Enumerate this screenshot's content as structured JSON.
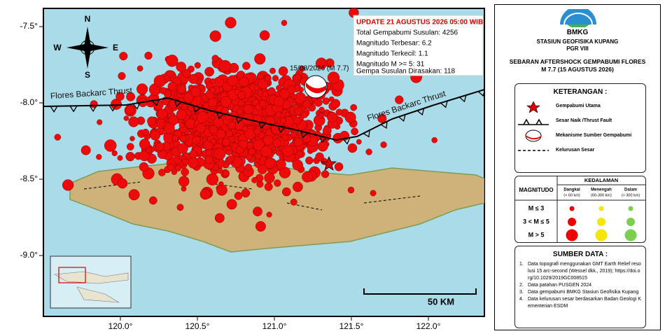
{
  "map": {
    "lat_ticks": [
      {
        "value": -7.5,
        "label": "-7.5°"
      },
      {
        "value": -8.0,
        "label": "-8.0°"
      },
      {
        "value": -8.5,
        "label": "-8.5°"
      },
      {
        "value": -9.0,
        "label": "-9.0°"
      }
    ],
    "lon_ticks": [
      {
        "value": 120.0,
        "label": "120.0°"
      },
      {
        "value": 120.5,
        "label": "120.5°"
      },
      {
        "value": 121.0,
        "label": "121.0°"
      },
      {
        "value": 121.5,
        "label": "121.5°"
      },
      {
        "value": 122.0,
        "label": "122.0°"
      }
    ],
    "fault_labels": [
      "Flores Backarc Thrust",
      "Flores Backarc Thrust"
    ],
    "compass": {
      "n": "N",
      "s": "S",
      "w": "W",
      "e": "E"
    },
    "epicenter_label": "15/08/2026 (M 7.7)",
    "scale_label": "50 KM"
  },
  "update_box": {
    "title": "UPDATE 21 AGUSTUS 2026 05:00 WIB",
    "lines": [
      "Total Gempabumi Susulan: 4256",
      "Magnitudo Terbesar: 6.2",
      "Magnitudo Terkecil: 1.1",
      "Magnitudo M >= 5: 31",
      "Gempa Susulan Dirasakan: 118"
    ]
  },
  "panel": {
    "logo": "BMKG",
    "station": [
      "STASIUN GEOFISIKA KUPANG",
      "PGR VIII"
    ],
    "title": [
      "SEBARAN AFTERSHOCK GEMPABUMI FLORES",
      "M 7.7 (15 AGUSTUS 2026)"
    ],
    "legend": {
      "heading": "KETERANGAN :",
      "items": [
        "Gempabumi Utama",
        "Sesar Naik /Thrust Fault",
        "Mekanisme Sumber Gempabumi",
        "Kelurusan Sesar"
      ]
    },
    "depth": {
      "magnitude_header": "MAGNITUDO",
      "depth_header": "KEDALAMAN",
      "columns": [
        [
          "Dangkal",
          "(< 60 km)"
        ],
        [
          "Menengah",
          "(60-300 km)"
        ],
        [
          "Dalam",
          "(> 300 km)"
        ]
      ],
      "rows": [
        "M ≤ 3",
        "3 < M ≤ 5",
        "M > 5"
      ]
    },
    "sources": {
      "heading": "SUMBER DATA :",
      "items": [
        {
          "num": "1.",
          "text": "Data topografi menggunakan GMT Earth Relief resolusi 15 arc-second (Wessel dkk., 2019); https://doi.org/10.1029/2019GC008515"
        },
        {
          "num": "2.",
          "text": "Data patahan PUSGEN 2024"
        },
        {
          "num": "3.",
          "text": "Data gempabumi BMKG Stasiun Geofisika Kupang"
        },
        {
          "num": "4.",
          "text": "Data kelurusan sesar berdasarkan Badan Geologi Kementerian ESDM"
        }
      ]
    }
  }
}
